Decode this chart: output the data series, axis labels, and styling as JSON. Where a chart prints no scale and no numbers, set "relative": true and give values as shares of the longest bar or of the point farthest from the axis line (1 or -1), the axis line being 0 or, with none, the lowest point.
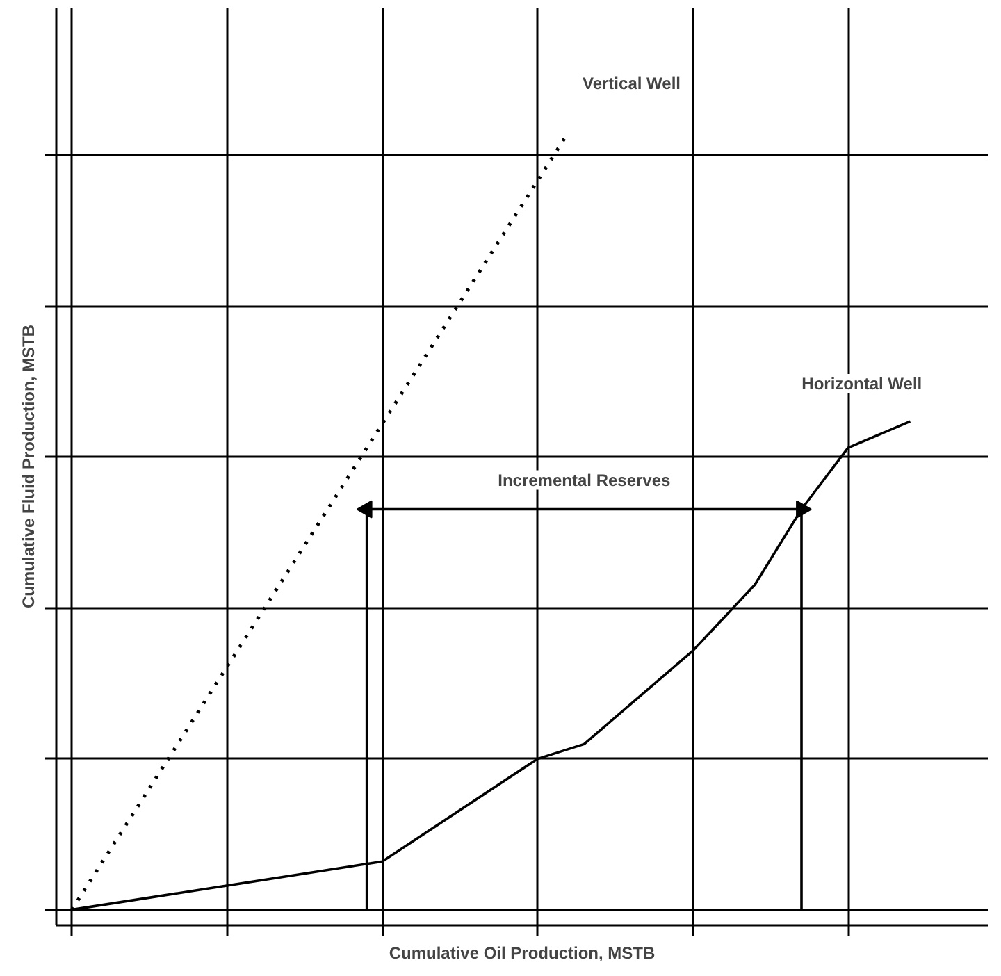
{
  "chart_data": {
    "type": "line",
    "relative": true,
    "xlabel": "Cumulative Oil Production, MSTB",
    "ylabel": "Cumulative Fluid Production, MSTB",
    "grid": true,
    "categories": [
      null,
      null,
      null,
      null,
      null,
      null,
      null,
      null,
      null,
      null,
      null,
      null,
      null,
      null,
      null,
      null,
      null,
      null,
      null,
      null,
      null,
      null,
      null,
      null,
      null,
      null,
      null,
      null,
      null,
      null,
      null,
      null,
      null,
      null,
      null,
      null,
      null,
      null,
      null,
      null,
      null,
      null,
      null,
      null,
      null,
      null,
      null,
      null,
      null,
      null,
      null,
      null,
      null,
      null,
      null
    ],
    "series": [
      {
        "name": "Vertical Well",
        "color": "#000000",
        "line_style": "dotted",
        "values": [
          0,
          null,
          null,
          null,
          null,
          null,
          null,
          null,
          null,
          null,
          null,
          null,
          null,
          null,
          null,
          null,
          null,
          null,
          null,
          null,
          null,
          null,
          null,
          null,
          null,
          null,
          null,
          null,
          null,
          null,
          null,
          null,
          1,
          null,
          null,
          null,
          null,
          null,
          null,
          null,
          null,
          null,
          null,
          null,
          null,
          null,
          null,
          null,
          null,
          null,
          null,
          null,
          null,
          null,
          null
        ]
      },
      {
        "name": "Horizontal Well",
        "color": "#000000",
        "line_style": "solid",
        "values": [
          0,
          null,
          null,
          null,
          null,
          null,
          null,
          null,
          null,
          null,
          null,
          null,
          null,
          null,
          null,
          null,
          null,
          null,
          null,
          null,
          0.062,
          null,
          null,
          null,
          null,
          null,
          null,
          null,
          null,
          null,
          0.194,
          null,
          null,
          0.213,
          null,
          null,
          null,
          null,
          null,
          null,
          0.333,
          null,
          null,
          null,
          0.418,
          null,
          null,
          0.515,
          null,
          null,
          0.594,
          null,
          null,
          null,
          0.628
        ]
      },
      {
        "color": "#000000",
        "line_style": "solid",
        "marker": "triangle",
        "values": [
          null,
          null,
          null,
          null,
          null,
          null,
          null,
          null,
          null,
          null,
          null,
          null,
          null,
          null,
          null,
          null,
          null,
          null,
          null,
          0.515,
          null,
          null,
          null,
          null,
          null,
          null,
          null,
          null,
          null,
          null,
          null,
          null,
          null,
          null,
          null,
          null,
          null,
          null,
          null,
          null,
          null,
          null,
          null,
          null,
          null,
          null,
          null,
          0.515,
          null,
          null,
          null,
          null,
          null,
          null,
          null
        ]
      }
    ],
    "annotations": [
      "Incremental Reserves"
    ]
  }
}
